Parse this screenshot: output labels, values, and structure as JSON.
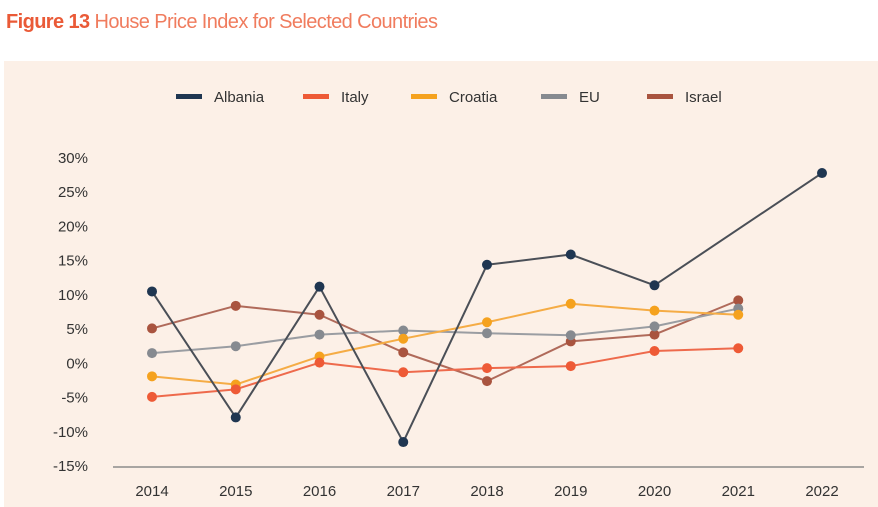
{
  "figure": {
    "number_label": "Figure 13",
    "title": "House Price Index for Selected Countries"
  },
  "chart_data": {
    "type": "line",
    "title": "House Price Index for Selected Countries",
    "xlabel": "",
    "ylabel": "",
    "x": [
      "2014",
      "2015",
      "2016",
      "2017",
      "2018",
      "2019",
      "2020",
      "2021",
      "2022"
    ],
    "ylim": [
      -15,
      30
    ],
    "yticks": [
      30,
      25,
      20,
      15,
      10,
      5,
      0,
      -5,
      -10,
      -15
    ],
    "ytick_labels": [
      "30%",
      "25%",
      "20%",
      "15%",
      "10%",
      "5%",
      "0%",
      "-5%",
      "-10%",
      "-15%"
    ],
    "grid": false,
    "legend_position": "top-center",
    "series": [
      {
        "name": "Albania",
        "color": "#1f3651",
        "line_color": "#4a4f57",
        "values": [
          10.5,
          -7.9,
          11.2,
          -11.5,
          14.4,
          15.9,
          11.4,
          null,
          27.8
        ]
      },
      {
        "name": "Italy",
        "color": "#ee5a36",
        "line_color": "#ee6a4c",
        "values": [
          -4.9,
          -3.8,
          0.1,
          -1.3,
          -0.7,
          -0.4,
          1.8,
          2.2,
          null
        ]
      },
      {
        "name": "Croatia",
        "color": "#f5a21e",
        "line_color": "#f5ac45",
        "values": [
          -1.9,
          -3.1,
          1.0,
          3.6,
          6.0,
          8.7,
          7.7,
          7.1,
          null
        ]
      },
      {
        "name": "EU",
        "color": "#868a90",
        "line_color": "#9a9da2",
        "values": [
          1.5,
          2.5,
          4.2,
          4.8,
          4.4,
          4.1,
          5.4,
          8.0,
          null
        ]
      },
      {
        "name": "Israel",
        "color": "#a9543f",
        "line_color": "#b06a5a",
        "values": [
          5.1,
          8.4,
          7.1,
          1.6,
          -2.6,
          3.2,
          4.2,
          9.2,
          null
        ]
      }
    ]
  }
}
